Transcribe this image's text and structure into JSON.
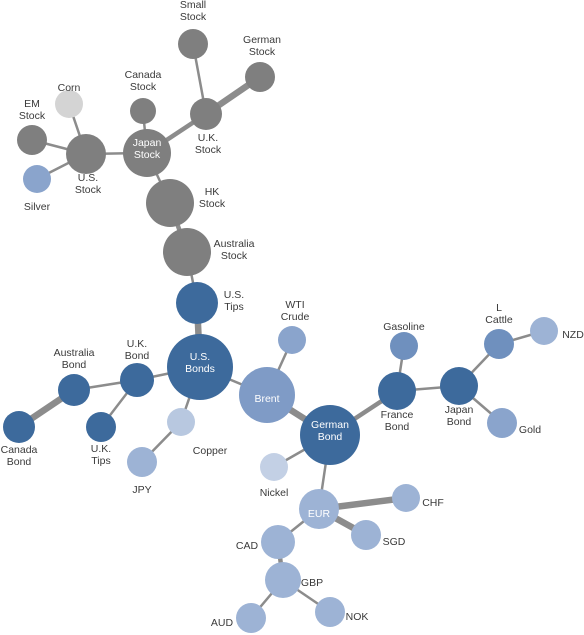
{
  "nodes": {
    "small_stock": {
      "label": [
        "Small",
        "Stock"
      ],
      "color": "#7f7f7f"
    },
    "german_stock": {
      "label": [
        "German",
        "Stock"
      ],
      "color": "#7f7f7f"
    },
    "canada_stock": {
      "label": [
        "Canada",
        "Stock"
      ],
      "color": "#7f7f7f"
    },
    "corn": {
      "label": [
        "Corn"
      ],
      "color": "#d4d4d4"
    },
    "em_stock": {
      "label": [
        "EM",
        "Stock"
      ],
      "color": "#7f7f7f"
    },
    "uk_stock": {
      "label": [
        "U.K.",
        "Stock"
      ],
      "color": "#7f7f7f"
    },
    "japan_stock": {
      "label": [
        "Japan",
        "Stock"
      ],
      "color": "#7f7f7f"
    },
    "us_stock": {
      "label": [
        "U.S.",
        "Stock"
      ],
      "color": "#7f7f7f"
    },
    "silver": {
      "label": [
        "Silver"
      ],
      "color": "#8aa4cc"
    },
    "hk_stock": {
      "label": [
        "HK",
        "Stock"
      ],
      "color": "#7f7f7f"
    },
    "aus_stock": {
      "label": [
        "Australia",
        "Stock"
      ],
      "color": "#7f7f7f"
    },
    "us_tips": {
      "label": [
        "U.S.",
        "Tips"
      ],
      "color": "#3d6a9c"
    },
    "wti": {
      "label": [
        "WTI",
        "Crude"
      ],
      "color": "#8aa4cc"
    },
    "gasoline": {
      "label": [
        "Gasoline"
      ],
      "color": "#6f90be"
    },
    "l_cattle": {
      "label": [
        "L",
        "Cattle"
      ],
      "color": "#6f90be"
    },
    "nzd": {
      "label": [
        "NZD"
      ],
      "color": "#9db3d5"
    },
    "aus_bond": {
      "label": [
        "Australia",
        "Bond"
      ],
      "color": "#3d6a9c"
    },
    "uk_bond": {
      "label": [
        "U.K.",
        "Bond"
      ],
      "color": "#3d6a9c"
    },
    "us_bonds": {
      "label": [
        "U.S.",
        "Bonds"
      ],
      "color": "#3d6a9c"
    },
    "brent": {
      "label": [
        "Brent"
      ],
      "color": "#7f9bc6"
    },
    "france_bond": {
      "label": [
        "France",
        "Bond"
      ],
      "color": "#3d6a9c"
    },
    "japan_bond": {
      "label": [
        "Japan",
        "Bond"
      ],
      "color": "#3d6a9c"
    },
    "gold": {
      "label": [
        "Gold"
      ],
      "color": "#8aa4cc"
    },
    "canada_bond": {
      "label": [
        "Canada",
        "Bond"
      ],
      "color": "#3d6a9c"
    },
    "uk_tips": {
      "label": [
        "U.K.",
        "Tips"
      ],
      "color": "#3d6a9c"
    },
    "copper": {
      "label": [
        "Copper"
      ],
      "color": "#b8c8e0"
    },
    "jpy": {
      "label": [
        "JPY"
      ],
      "color": "#9db3d5"
    },
    "german_bond": {
      "label": [
        "German",
        "Bond"
      ],
      "color": "#3d6a9c"
    },
    "nickel": {
      "label": [
        "Nickel"
      ],
      "color": "#c3d0e5"
    },
    "eur": {
      "label": [
        "EUR"
      ],
      "color": "#9db3d5"
    },
    "chf": {
      "label": [
        "CHF"
      ],
      "color": "#9db3d5"
    },
    "sgd": {
      "label": [
        "SGD"
      ],
      "color": "#9db3d5"
    },
    "cad": {
      "label": [
        "CAD"
      ],
      "color": "#9db3d5"
    },
    "gbp": {
      "label": [
        "GBP"
      ],
      "color": "#9db3d5"
    },
    "aud": {
      "label": [
        "AUD"
      ],
      "color": "#9db3d5"
    },
    "nok": {
      "label": [
        "NOK"
      ],
      "color": "#9db3d5"
    }
  },
  "edges": [
    {
      "from": "small_stock",
      "to": "uk_stock",
      "strength": 1
    },
    {
      "from": "german_stock",
      "to": "uk_stock",
      "strength": 3
    },
    {
      "from": "uk_stock",
      "to": "japan_stock",
      "strength": 2
    },
    {
      "from": "canada_stock",
      "to": "japan_stock",
      "strength": 1
    },
    {
      "from": "japan_stock",
      "to": "us_stock",
      "strength": 1
    },
    {
      "from": "corn",
      "to": "us_stock",
      "strength": 1
    },
    {
      "from": "em_stock",
      "to": "us_stock",
      "strength": 1
    },
    {
      "from": "silver",
      "to": "us_stock",
      "strength": 1
    },
    {
      "from": "japan_stock",
      "to": "hk_stock",
      "strength": 1
    },
    {
      "from": "hk_stock",
      "to": "aus_stock",
      "strength": 2
    },
    {
      "from": "aus_stock",
      "to": "us_tips",
      "strength": 1
    },
    {
      "from": "us_tips",
      "to": "us_bonds",
      "strength": 3
    },
    {
      "from": "us_bonds",
      "to": "uk_bond",
      "strength": 1
    },
    {
      "from": "us_bonds",
      "to": "brent",
      "strength": 1
    },
    {
      "from": "us_bonds",
      "to": "copper",
      "strength": 1
    },
    {
      "from": "uk_bond",
      "to": "aus_bond",
      "strength": 1
    },
    {
      "from": "aus_bond",
      "to": "canada_bond",
      "strength": 3
    },
    {
      "from": "uk_bond",
      "to": "uk_tips",
      "strength": 1
    },
    {
      "from": "copper",
      "to": "jpy",
      "strength": 1
    },
    {
      "from": "brent",
      "to": "wti",
      "strength": 1
    },
    {
      "from": "brent",
      "to": "german_bond",
      "strength": 3
    },
    {
      "from": "german_bond",
      "to": "france_bond",
      "strength": 2
    },
    {
      "from": "france_bond",
      "to": "gasoline",
      "strength": 1
    },
    {
      "from": "france_bond",
      "to": "japan_bond",
      "strength": 1
    },
    {
      "from": "japan_bond",
      "to": "l_cattle",
      "strength": 1
    },
    {
      "from": "l_cattle",
      "to": "nzd",
      "strength": 1
    },
    {
      "from": "japan_bond",
      "to": "gold",
      "strength": 1
    },
    {
      "from": "german_bond",
      "to": "nickel",
      "strength": 1
    },
    {
      "from": "german_bond",
      "to": "eur",
      "strength": 1
    },
    {
      "from": "eur",
      "to": "chf",
      "strength": 3
    },
    {
      "from": "eur",
      "to": "sgd",
      "strength": 3
    },
    {
      "from": "eur",
      "to": "cad",
      "strength": 1
    },
    {
      "from": "cad",
      "to": "gbp",
      "strength": 2
    },
    {
      "from": "gbp",
      "to": "aud",
      "strength": 1
    },
    {
      "from": "gbp",
      "to": "nok",
      "strength": 1
    }
  ]
}
